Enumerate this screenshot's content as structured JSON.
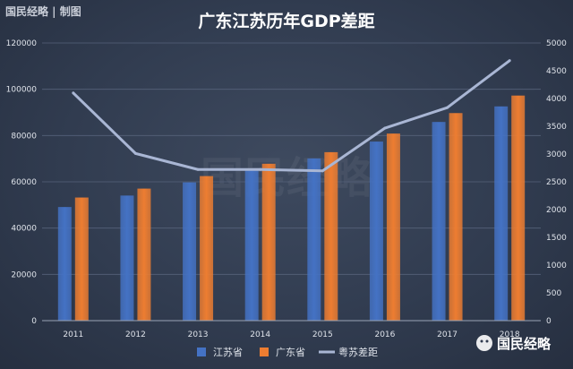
{
  "brand": {
    "source_tag": "国民经略 | 制图",
    "watermark": "国民经略",
    "wechat_badge": "国民经略"
  },
  "chart_data": {
    "type": "bar",
    "title": "广东江苏历年GDP差距",
    "categories": [
      "2011",
      "2012",
      "2013",
      "2014",
      "2015",
      "2016",
      "2017",
      "2018"
    ],
    "series": [
      {
        "name": "江苏省",
        "kind": "bar",
        "axis": "left",
        "color": "#4472c4",
        "values": [
          49110,
          54058,
          59753,
          65088,
          70116,
          77388,
          85869,
          92595
        ]
      },
      {
        "name": "广东省",
        "kind": "bar",
        "axis": "left",
        "color": "#ed7d31",
        "values": [
          53210,
          57068,
          62475,
          67810,
          72813,
          80855,
          89705,
          97278
        ]
      },
      {
        "name": "粤苏差距",
        "kind": "line",
        "axis": "right",
        "color": "#a9b6d4",
        "values": [
          4100,
          3010,
          2722,
          2722,
          2697,
          3467,
          3836,
          4683
        ]
      }
    ],
    "left_axis": {
      "ylim": [
        0,
        120000
      ],
      "ticks": [
        0,
        20000,
        40000,
        60000,
        80000,
        100000,
        120000
      ]
    },
    "right_axis": {
      "ylim": [
        0,
        5000
      ],
      "ticks": [
        0,
        500,
        1000,
        1500,
        2000,
        2500,
        3000,
        3500,
        4000,
        4500,
        5000
      ]
    },
    "grid": true,
    "legend": "bottom"
  }
}
